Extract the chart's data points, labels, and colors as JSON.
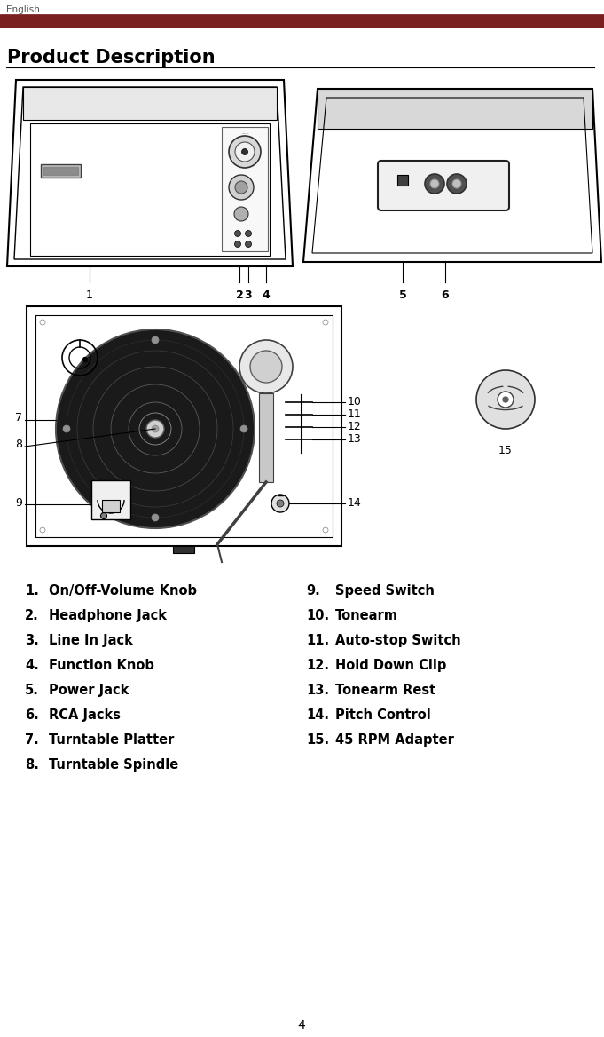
{
  "page_label": "English",
  "title": "Product Description",
  "header_line_color": "#7B2020",
  "header_bar_color": "#7B2020",
  "page_number": "4",
  "left_items": [
    [
      "1.",
      "On/Off-Volume Knob"
    ],
    [
      "2.",
      "Headphone Jack"
    ],
    [
      "3.",
      "Line In Jack"
    ],
    [
      "4.",
      "Function Knob"
    ],
    [
      "5.",
      "Power Jack"
    ],
    [
      "6.",
      "RCA Jacks"
    ],
    [
      "7.",
      "Turntable Platter"
    ],
    [
      "8.",
      "Turntable Spindle"
    ]
  ],
  "right_items": [
    [
      "9.",
      "Speed Switch"
    ],
    [
      "10.",
      "Tonearm"
    ],
    [
      "11.",
      "Auto-stop Switch"
    ],
    [
      "12.",
      "Hold Down Clip"
    ],
    [
      "13.",
      "Tonearm Rest"
    ],
    [
      "14.",
      "Pitch Control"
    ],
    [
      "15.",
      "45 RPM Adapter"
    ]
  ],
  "font_color": "#000000",
  "background_color": "#ffffff"
}
